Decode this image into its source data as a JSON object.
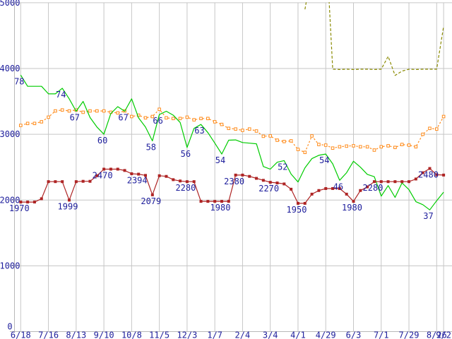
{
  "page": {
    "background": "#ffffff"
  },
  "chart_data": {
    "type": "line",
    "title": "",
    "xlabel": "",
    "ylabel": "",
    "grid": true,
    "legend": "none",
    "colors": {
      "background": "#ffffff",
      "grid": "#c6c6c6",
      "axis": "#b8b8b8",
      "label_text": "#1e1e9c",
      "green_series": "#00cc00",
      "orange_series": "#ff8c1c",
      "red_series": "#ae2424",
      "olive_series": "#8a8a00"
    },
    "y_axis": {
      "min": 0,
      "max": 5000,
      "ticks": [
        0,
        1000,
        2000,
        3000,
        4000,
        5000
      ],
      "tick_labels": [
        "0",
        "1000",
        "2000",
        "3000",
        "4000",
        "5000"
      ]
    },
    "x_axis": {
      "n_points": 62,
      "tick_positions": [
        0,
        4,
        8,
        12,
        16,
        20,
        24,
        28,
        32,
        36,
        40,
        44,
        48,
        52,
        56,
        60,
        61
      ],
      "tick_labels": [
        "6/18",
        "7/16",
        "8/13",
        "9/10",
        "10/8",
        "11/5",
        "12/3",
        "1/7",
        "2/4",
        "3/4",
        "4/1",
        "4/29",
        "6/3",
        "7/1",
        "7/29",
        "8/26",
        "9/2"
      ]
    },
    "series": [
      {
        "name": "olive-dashed",
        "color": "#8a8a00",
        "style": "dashed",
        "marker": "none",
        "values": [
          null,
          null,
          null,
          null,
          null,
          null,
          null,
          null,
          null,
          null,
          null,
          null,
          null,
          null,
          null,
          null,
          null,
          null,
          null,
          null,
          null,
          null,
          null,
          null,
          null,
          null,
          null,
          null,
          null,
          null,
          null,
          null,
          null,
          null,
          null,
          null,
          null,
          null,
          null,
          null,
          null,
          4900,
          5500,
          6200,
          6000,
          3990,
          3985,
          3990,
          3985,
          3990,
          3990,
          3985,
          3990,
          4185,
          3895,
          3960,
          3990,
          3985,
          3990,
          3990,
          3990,
          4640
        ]
      },
      {
        "name": "orange-dashed",
        "color": "#ff8c1c",
        "style": "dashed",
        "marker": "square-open",
        "values": [
          3135,
          3165,
          3165,
          3190,
          3260,
          3355,
          3370,
          3355,
          3370,
          3335,
          3355,
          3355,
          3355,
          3335,
          3325,
          3355,
          3270,
          3290,
          3250,
          3270,
          3380,
          3250,
          3240,
          3240,
          3260,
          3220,
          3240,
          3240,
          3190,
          3150,
          3090,
          3080,
          3060,
          3080,
          3050,
          2970,
          2975,
          2910,
          2890,
          2900,
          2770,
          2725,
          2975,
          2845,
          2835,
          2790,
          2810,
          2820,
          2825,
          2810,
          2810,
          2760,
          2810,
          2825,
          2800,
          2845,
          2835,
          2810,
          3000,
          3090,
          3080,
          3270
        ]
      },
      {
        "name": "green-line",
        "color": "#00cc00",
        "style": "solid",
        "marker": "none",
        "values": [
          3900,
          3730,
          3730,
          3730,
          3615,
          3615,
          3700,
          3540,
          3350,
          3500,
          3255,
          3110,
          3000,
          3315,
          3420,
          3350,
          3540,
          3250,
          3110,
          2900,
          3300,
          3350,
          3290,
          3180,
          2800,
          3090,
          3150,
          3025,
          2865,
          2700,
          2910,
          2915,
          2875,
          2865,
          2855,
          2510,
          2470,
          2575,
          2600,
          2395,
          2275,
          2490,
          2630,
          2680,
          2700,
          2550,
          2300,
          2415,
          2590,
          2500,
          2390,
          2355,
          2060,
          2220,
          2040,
          2260,
          2160,
          1975,
          1930,
          1850,
          1990,
          2120
        ]
      },
      {
        "name": "red-marked",
        "color": "#ae2424",
        "style": "solid",
        "marker": "square-filled",
        "values": [
          1970,
          1970,
          1970,
          2020,
          2280,
          2280,
          2280,
          1999,
          2280,
          2285,
          2285,
          2370,
          2470,
          2470,
          2470,
          2450,
          2400,
          2394,
          2375,
          2079,
          2370,
          2360,
          2310,
          2290,
          2280,
          2280,
          1980,
          1980,
          1980,
          1980,
          1980,
          2380,
          2380,
          2360,
          2330,
          2300,
          2270,
          2260,
          2245,
          2165,
          1950,
          1950,
          2090,
          2145,
          2175,
          2175,
          2175,
          2090,
          1980,
          2145,
          2200,
          2280,
          2280,
          2280,
          2280,
          2280,
          2280,
          2320,
          2415,
          2480,
          2385,
          2380
        ]
      }
    ],
    "point_labels": [
      {
        "series": "green-line",
        "index": 0,
        "text": "78"
      },
      {
        "series": "green-line",
        "index": 6,
        "text": "74"
      },
      {
        "series": "green-line",
        "index": 8,
        "text": "67"
      },
      {
        "series": "green-line",
        "index": 12,
        "text": "60"
      },
      {
        "series": "green-line",
        "index": 15,
        "text": "67"
      },
      {
        "series": "green-line",
        "index": 19,
        "text": "58"
      },
      {
        "series": "green-line",
        "index": 20,
        "text": "66"
      },
      {
        "series": "green-line",
        "index": 24,
        "text": "56"
      },
      {
        "series": "green-line",
        "index": 26,
        "text": "63"
      },
      {
        "series": "green-line",
        "index": 29,
        "text": "54"
      },
      {
        "series": "green-line",
        "index": 38,
        "text": "52"
      },
      {
        "series": "green-line",
        "index": 44,
        "text": "54"
      },
      {
        "series": "green-line",
        "index": 46,
        "text": "46"
      },
      {
        "series": "green-line",
        "index": 59,
        "text": "37"
      },
      {
        "series": "red-marked",
        "index": 0,
        "text": "1970"
      },
      {
        "series": "red-marked",
        "index": 7,
        "text": "1999"
      },
      {
        "series": "red-marked",
        "index": 12,
        "text": "2470"
      },
      {
        "series": "red-marked",
        "index": 17,
        "text": "2394"
      },
      {
        "series": "red-marked",
        "index": 19,
        "text": "2079"
      },
      {
        "series": "red-marked",
        "index": 24,
        "text": "2280"
      },
      {
        "series": "red-marked",
        "index": 29,
        "text": "1980"
      },
      {
        "series": "red-marked",
        "index": 31,
        "text": "2380"
      },
      {
        "series": "red-marked",
        "index": 36,
        "text": "2270"
      },
      {
        "series": "red-marked",
        "index": 40,
        "text": "1950"
      },
      {
        "series": "red-marked",
        "index": 48,
        "text": "1980"
      },
      {
        "series": "red-marked",
        "index": 51,
        "text": "2280"
      },
      {
        "series": "red-marked",
        "index": 59,
        "text": "2480"
      }
    ]
  }
}
